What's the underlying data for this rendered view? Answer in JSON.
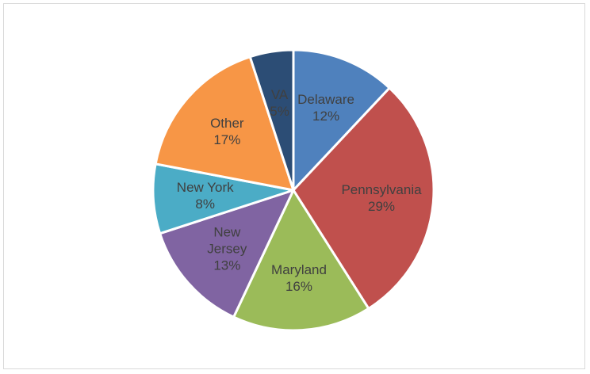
{
  "chart_data": {
    "type": "pie",
    "categories": [
      "Delaware",
      "Pennsylvania",
      "Maryland",
      "New Jersey",
      "New York",
      "Other",
      "VA"
    ],
    "values": [
      12,
      29,
      16,
      13,
      8,
      17,
      5
    ],
    "value_labels": [
      "12%",
      "29%",
      "16%",
      "13%",
      "8%",
      "17%",
      "5%"
    ],
    "colors": [
      "#4f81bd",
      "#c0504d",
      "#9bbb59",
      "#8064a2",
      "#4bacc6",
      "#f79646",
      "#2c4d75"
    ]
  }
}
